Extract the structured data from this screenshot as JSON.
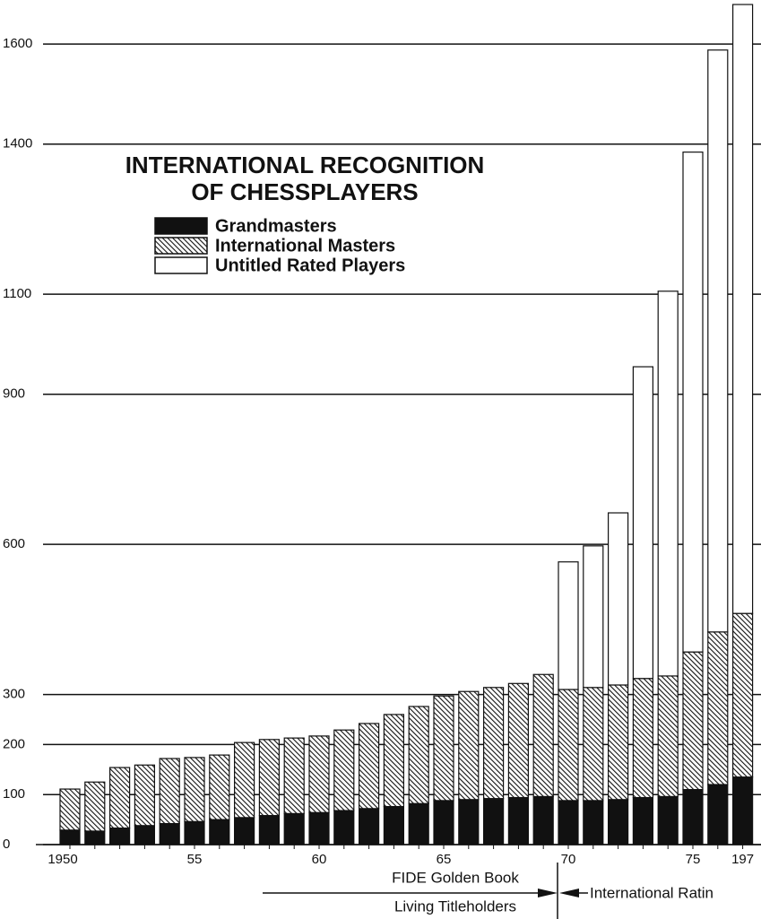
{
  "chart_data": {
    "type": "stacked_bar",
    "title": "INTERNATIONAL RECOGNITION",
    "subtitle": "OF CHESSPLAYERS",
    "categories": [
      "1950",
      null,
      null,
      null,
      null,
      "55",
      null,
      null,
      null,
      null,
      "60",
      null,
      null,
      null,
      null,
      "65",
      null,
      null,
      null,
      null,
      "70",
      null,
      null,
      null,
      null,
      "75",
      null,
      "197"
    ],
    "series": [
      {
        "name": "Grandmasters",
        "color": "#111111",
        "pattern": "solid",
        "values": [
          29,
          27,
          33,
          38,
          42,
          46,
          50,
          54,
          58,
          62,
          64,
          68,
          72,
          76,
          82,
          88,
          90,
          92,
          94,
          96,
          88,
          88,
          90,
          94,
          96,
          110,
          120,
          135
        ]
      },
      {
        "name": "International Masters",
        "color": "#111111",
        "pattern": "hatch",
        "values": [
          82,
          98,
          121,
          121,
          130,
          128,
          129,
          150,
          152,
          151,
          153,
          161,
          170,
          184,
          194,
          209,
          216,
          222,
          228,
          244,
          222,
          226,
          229,
          238,
          241,
          275,
          305,
          327
        ]
      },
      {
        "name": "Untitled Rated Players",
        "color": "#ffffff",
        "pattern": "solid",
        "values": [
          0,
          0,
          0,
          0,
          0,
          0,
          0,
          0,
          0,
          0,
          0,
          0,
          0,
          0,
          0,
          0,
          0,
          0,
          0,
          0,
          255,
          283,
          344,
          623,
          769,
          999,
          1163,
          1217
        ]
      }
    ],
    "ylim": [
      0,
      1688
    ],
    "yticks": [
      0,
      100,
      200,
      300,
      600,
      900,
      1100,
      1400,
      1600
    ],
    "grid": true,
    "annotations": [
      "FIDE Golden Book",
      "Living Titleholders",
      "International Ratin"
    ]
  }
}
